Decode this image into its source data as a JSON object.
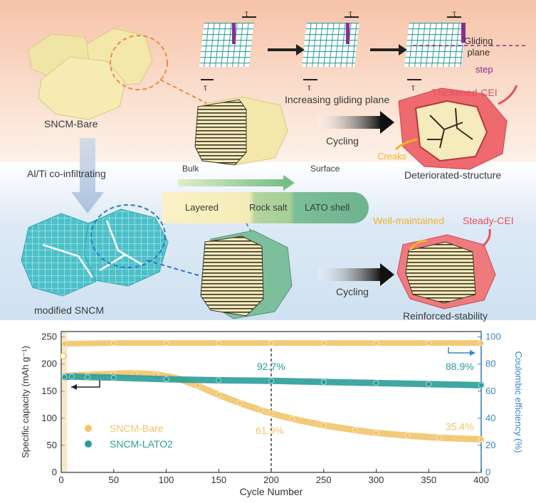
{
  "schematic": {
    "bare_label": "SNCM-Bare",
    "infiltration_label": "Al/Ti co-infiltrating",
    "modified_label": "modified SNCM",
    "tau": "τ",
    "gliding_plane": "Gliding\nplane",
    "step": "step",
    "increasing_gliding": "Increasing gliding plane",
    "thickened_cei": "Thickened-CEI",
    "creaks": "Creaks",
    "deteriorated": "Deteriorated-structure",
    "cycling": "Cycling",
    "bulk": "Bulk",
    "surface": "Surface",
    "layered": "Layered",
    "rock_salt": "Rock salt",
    "lato_shell": "LATO shell",
    "well_maintained": "Well-maintained",
    "steady_cei": "Steady-CEI",
    "reinforced": "Reinforced-stability"
  },
  "colors": {
    "bare": "#f2c46a",
    "lato": "#2a9d9a",
    "ce_axis": "#3a86c8",
    "top_band": "#f7c9b0",
    "mid_band": "#cfe2f3",
    "cei_red": "#e8505b",
    "shell_green": "#7bbf9a"
  },
  "chart_data": {
    "type": "scatter",
    "xlabel": "Cycle Number",
    "ylabel": "Specific capacity (mAh g⁻¹)",
    "y2label": "Coulombic efficiency (%)",
    "xlim": [
      0,
      400
    ],
    "ylim": [
      0,
      260
    ],
    "y2lim": [
      0,
      104
    ],
    "xticks": [
      0,
      50,
      100,
      150,
      200,
      250,
      300,
      350,
      400
    ],
    "yticks": [
      0,
      50,
      100,
      150,
      200,
      250
    ],
    "y2ticks": [
      0,
      20,
      40,
      60,
      80,
      100
    ],
    "series": [
      {
        "name": "SNCM-Bare",
        "axis": "capacity",
        "color": "#f2c46a",
        "x": [
          3,
          10,
          25,
          50,
          70,
          90,
          110,
          130,
          150,
          170,
          190,
          200,
          220,
          250,
          280,
          300,
          330,
          360,
          400
        ],
        "y": [
          178,
          179,
          180,
          182,
          183,
          181,
          174,
          160,
          143,
          128,
          115,
          109,
          99,
          87,
          78,
          73,
          68,
          64,
          61
        ]
      },
      {
        "name": "SNCM-LATO2",
        "axis": "capacity",
        "color": "#2a9d9a",
        "x": [
          3,
          10,
          25,
          50,
          100,
          150,
          200,
          250,
          300,
          350,
          400
        ],
        "y": [
          176,
          177,
          176,
          175,
          172,
          170,
          169,
          167,
          165,
          163,
          161
        ]
      },
      {
        "name": "SNCM-Bare",
        "axis": "coulombic",
        "color": "#f2c46a",
        "x": [
          3,
          50,
          100,
          150,
          200,
          250,
          300,
          350,
          400
        ],
        "y": [
          95,
          95.5,
          95.5,
          95.5,
          95.5,
          95.5,
          95.5,
          95.5,
          95.5
        ]
      }
    ],
    "annotations": [
      "92.7%",
      "88.9%",
      "61.9%",
      "35.4%"
    ],
    "legend": [
      "SNCM-Bare",
      "SNCM-LATO2"
    ],
    "legend_position": "bottom-left"
  }
}
